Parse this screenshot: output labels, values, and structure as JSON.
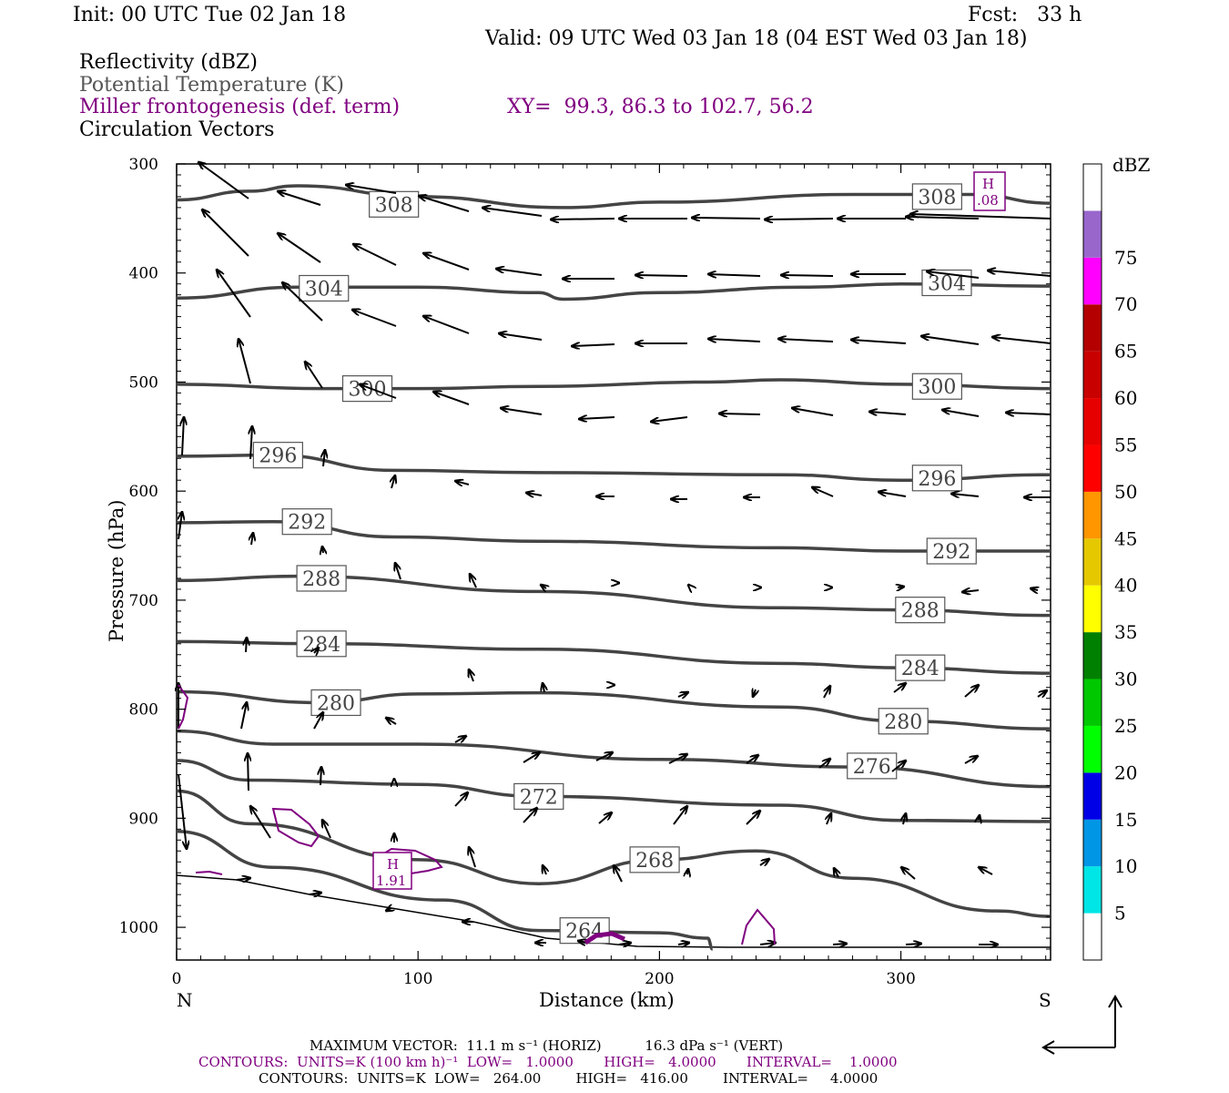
{
  "header": {
    "init": "Init: 00 UTC Tue 02 Jan 18",
    "fcst": "Fcst:   33 h",
    "valid": "Valid: 09 UTC Wed 03 Jan 18 (04 EST Wed 03 Jan 18)"
  },
  "legend": {
    "line1": "Reflectivity (dBZ)",
    "line2": "Potential Temperature (K)",
    "line3": "Miller frontogenesis (def. term)",
    "xy": "XY=  99.3, 86.3 to 102.7, 56.2",
    "line4": "Circulation Vectors"
  },
  "colors": {
    "theta": "#444444",
    "fronto": "#800080",
    "vector": "#000000"
  },
  "colorbar": {
    "unit": "dBZ",
    "labels": [
      "5",
      "10",
      "15",
      "20",
      "25",
      "30",
      "35",
      "40",
      "45",
      "50",
      "55",
      "60",
      "65",
      "70",
      "75"
    ],
    "colors": [
      "#ffffff",
      "#00e5e5",
      "#0096e6",
      "#0000e6",
      "#00ff00",
      "#00c800",
      "#008000",
      "#ffff00",
      "#e6c800",
      "#ff9600",
      "#ff0000",
      "#e60000",
      "#c80000",
      "#b40000",
      "#ff00ff",
      "#9966cc",
      "#ffffff"
    ]
  },
  "footer": {
    "max_vector": "MAXIMUM VECTOR:  11.1 m s⁻¹ (HORIZ)          16.3 dPa s⁻¹ (VERT)",
    "contours1": "CONTOURS:  UNITS=K (100 km h)⁻¹  LOW=   1.0000       HIGH=   4.0000       INTERVAL=    1.0000",
    "contours2": "CONTOURS:  UNITS=K  LOW=   264.00        HIGH=   416.00        INTERVAL=     4.0000"
  },
  "chart_data": {
    "type": "cross-section",
    "xlabel": "Distance (km)",
    "ylabel": "Pressure (hPa)",
    "xlim": [
      0,
      362
    ],
    "ylim": [
      1030,
      300
    ],
    "x_ticks": [
      "0",
      "100",
      "200",
      "300"
    ],
    "y_ticks": [
      "300",
      "400",
      "500",
      "600",
      "700",
      "800",
      "900",
      "1000"
    ],
    "x_end_labels": {
      "left": "N",
      "right": "S"
    },
    "isotherm_labels": [
      "308",
      "304",
      "300",
      "296",
      "292",
      "288",
      "284",
      "280",
      "276",
      "272",
      "268",
      "264"
    ],
    "isotherms": [
      {
        "theta": 308,
        "points": [
          [
            0,
            333
          ],
          [
            30,
            325
          ],
          [
            50,
            320
          ],
          [
            100,
            330
          ],
          [
            160,
            340
          ],
          [
            200,
            335
          ],
          [
            280,
            328
          ],
          [
            330,
            328
          ],
          [
            362,
            336
          ]
        ],
        "labels": [
          [
            90,
            337
          ],
          [
            315,
            330
          ]
        ]
      },
      {
        "theta": 304,
        "points": [
          [
            0,
            423
          ],
          [
            50,
            413
          ],
          [
            100,
            413
          ],
          [
            150,
            418
          ],
          [
            160,
            424
          ],
          [
            200,
            418
          ],
          [
            260,
            413
          ],
          [
            300,
            410
          ],
          [
            362,
            412
          ]
        ],
        "labels": [
          [
            61,
            414
          ],
          [
            319,
            409
          ]
        ]
      },
      {
        "theta": 300,
        "points": [
          [
            0,
            502
          ],
          [
            60,
            506
          ],
          [
            100,
            506
          ],
          [
            150,
            504
          ],
          [
            220,
            500
          ],
          [
            250,
            498
          ],
          [
            300,
            502
          ],
          [
            362,
            506
          ]
        ],
        "labels": [
          [
            79,
            506
          ],
          [
            315,
            504
          ]
        ]
      },
      {
        "theta": 296,
        "points": [
          [
            0,
            568
          ],
          [
            40,
            567
          ],
          [
            90,
            581
          ],
          [
            150,
            583
          ],
          [
            250,
            585
          ],
          [
            300,
            590
          ],
          [
            362,
            585
          ]
        ],
        "labels": [
          [
            42,
            567
          ],
          [
            315,
            588
          ]
        ]
      },
      {
        "theta": 292,
        "points": [
          [
            0,
            629
          ],
          [
            40,
            628
          ],
          [
            90,
            642
          ],
          [
            150,
            646
          ],
          [
            250,
            652
          ],
          [
            300,
            655
          ],
          [
            362,
            655
          ]
        ],
        "labels": [
          [
            54,
            628
          ],
          [
            321,
            655
          ]
        ]
      },
      {
        "theta": 288,
        "points": [
          [
            0,
            682
          ],
          [
            50,
            678
          ],
          [
            150,
            692
          ],
          [
            250,
            707
          ],
          [
            300,
            709
          ],
          [
            362,
            714
          ]
        ],
        "labels": [
          [
            60,
            680
          ],
          [
            308,
            709
          ]
        ]
      },
      {
        "theta": 284,
        "points": [
          [
            0,
            738
          ],
          [
            60,
            740
          ],
          [
            150,
            745
          ],
          [
            250,
            758
          ],
          [
            300,
            762
          ],
          [
            362,
            767
          ]
        ],
        "labels": [
          [
            60,
            740
          ],
          [
            308,
            762
          ]
        ]
      },
      {
        "theta": 280,
        "points": [
          [
            0,
            784
          ],
          [
            60,
            794
          ],
          [
            100,
            786
          ],
          [
            150,
            785
          ],
          [
            250,
            798
          ],
          [
            300,
            811
          ],
          [
            362,
            818
          ]
        ],
        "labels": [
          [
            66,
            794
          ],
          [
            301,
            811
          ]
        ]
      },
      {
        "theta": 276,
        "points": [
          [
            0,
            820
          ],
          [
            40,
            832
          ],
          [
            100,
            832
          ],
          [
            200,
            846
          ],
          [
            280,
            853
          ],
          [
            362,
            871
          ]
        ],
        "labels": [
          [
            288,
            852
          ]
        ]
      },
      {
        "theta": 272,
        "points": [
          [
            0,
            847
          ],
          [
            30,
            865
          ],
          [
            100,
            869
          ],
          [
            150,
            880
          ],
          [
            250,
            888
          ],
          [
            300,
            902
          ],
          [
            362,
            903
          ]
        ],
        "labels": [
          [
            150,
            880
          ]
        ]
      },
      {
        "theta": 268,
        "points": [
          [
            0,
            875
          ],
          [
            30,
            905
          ],
          [
            100,
            938
          ],
          [
            150,
            960
          ],
          [
            200,
            938
          ],
          [
            240,
            930
          ],
          [
            280,
            955
          ],
          [
            340,
            985
          ],
          [
            362,
            990
          ]
        ],
        "labels": [
          [
            198,
            938
          ]
        ]
      },
      {
        "theta": 264,
        "points": [
          [
            0,
            912
          ],
          [
            40,
            945
          ],
          [
            110,
            975
          ],
          [
            150,
            1003
          ],
          [
            200,
            1005
          ],
          [
            220,
            1010
          ],
          [
            222,
            1020
          ]
        ],
        "labels": [
          [
            169,
            1003
          ]
        ]
      }
    ],
    "frontogenesis": {
      "label_text": "H",
      "label_values": [
        "1.91",
        ".08"
      ]
    },
    "reflectivity": "none above 5 dBZ"
  }
}
